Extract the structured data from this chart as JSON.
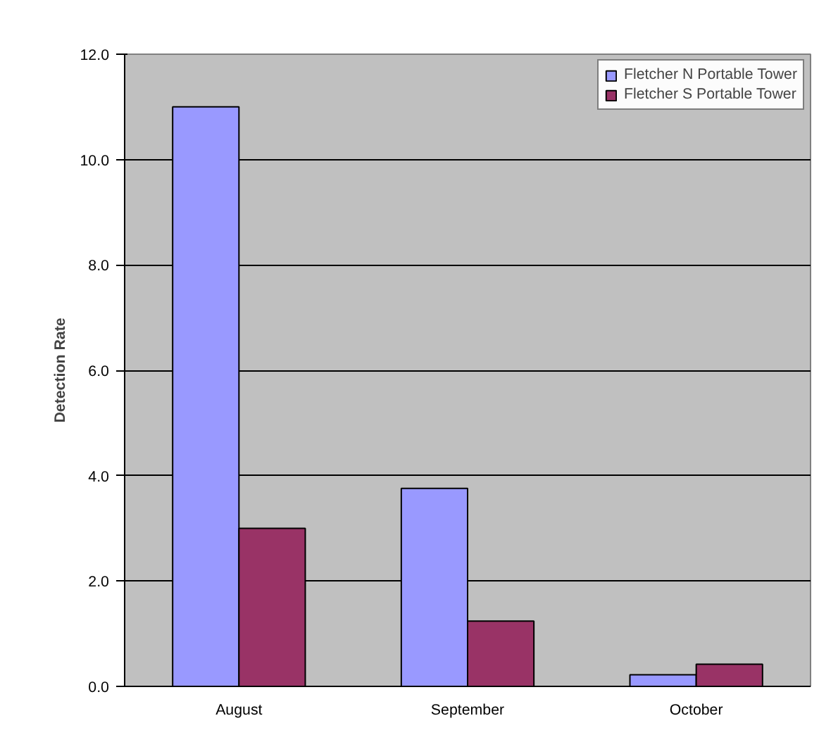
{
  "chart_data": {
    "type": "bar",
    "ylabel": "Detection Rate",
    "categories": [
      "August",
      "September",
      "October"
    ],
    "series": [
      {
        "name": "Fletcher N Portable Tower",
        "color": "#9999ff",
        "values": [
          11.0,
          3.76,
          0.22
        ]
      },
      {
        "name": "Fletcher S Portable Tower",
        "color": "#993366",
        "values": [
          3.0,
          1.24,
          0.42
        ]
      }
    ],
    "ylim": [
      0,
      12
    ],
    "yticks": [
      {
        "value": 0,
        "label": "0.0"
      },
      {
        "value": 2,
        "label": "2.0"
      },
      {
        "value": 4,
        "label": "4.0"
      },
      {
        "value": 6,
        "label": "6.0"
      },
      {
        "value": 8,
        "label": "8.0"
      },
      {
        "value": 10,
        "label": "10.0"
      },
      {
        "value": 12,
        "label": "12.0"
      }
    ],
    "grid": "y",
    "legend": "top right"
  }
}
